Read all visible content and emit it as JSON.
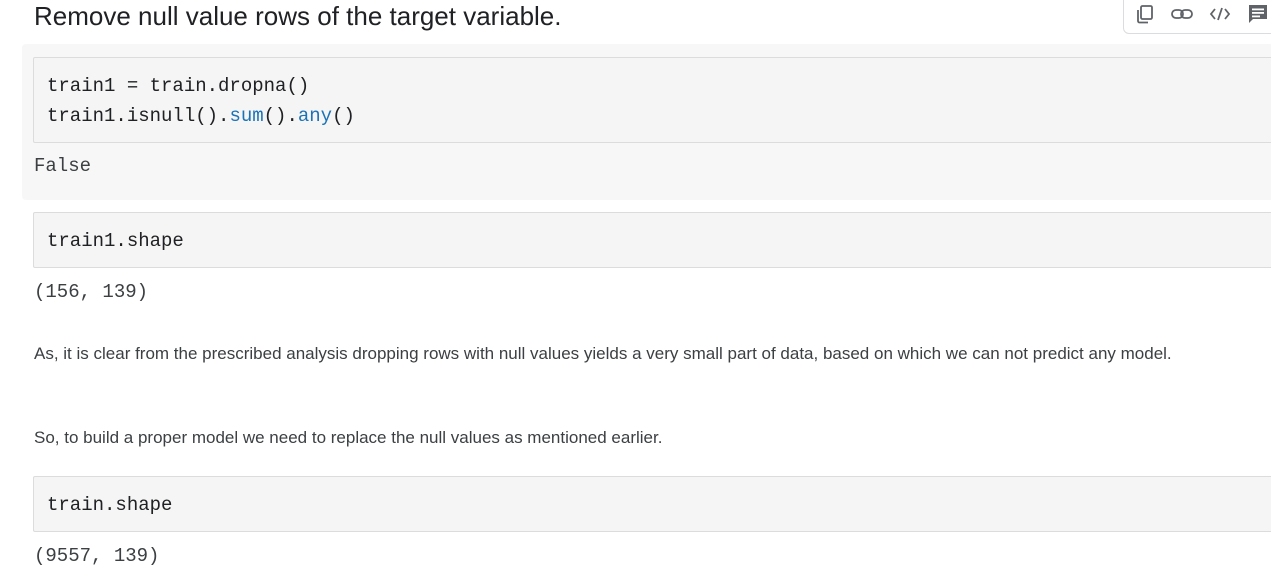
{
  "heading": "Remove null value rows of the target variable.",
  "toolbar": {
    "icons": [
      "copy-icon",
      "link-icon",
      "code-icon",
      "comment-icon"
    ]
  },
  "cells": [
    {
      "code_lines": [
        {
          "parts": [
            {
              "text": "train1 = train.dropna()",
              "kind": "plain"
            }
          ]
        },
        {
          "parts": [
            {
              "text": "train1.isnull().",
              "kind": "plain"
            },
            {
              "text": "sum",
              "kind": "fn"
            },
            {
              "text": "().",
              "kind": "plain"
            },
            {
              "text": "any",
              "kind": "fn"
            },
            {
              "text": "()",
              "kind": "plain"
            }
          ]
        }
      ],
      "output": "False"
    },
    {
      "code_lines": [
        {
          "parts": [
            {
              "text": "train1.shape",
              "kind": "plain"
            }
          ]
        }
      ],
      "output": "(156, 139)"
    },
    {
      "code_lines": [
        {
          "parts": [
            {
              "text": "train.shape",
              "kind": "plain"
            }
          ]
        }
      ],
      "output": "(9557, 139)"
    }
  ],
  "paragraphs": [
    "As, it is clear from the prescribed analysis dropping rows with null values yields a very small part of data, based on which we can not predict any model.",
    "So, to build a proper model we need to replace the null values as mentioned earlier."
  ],
  "colors": {
    "function_call": "#1a73b8",
    "code_background": "#f5f5f5",
    "cell_background": "#f7f7f7"
  }
}
